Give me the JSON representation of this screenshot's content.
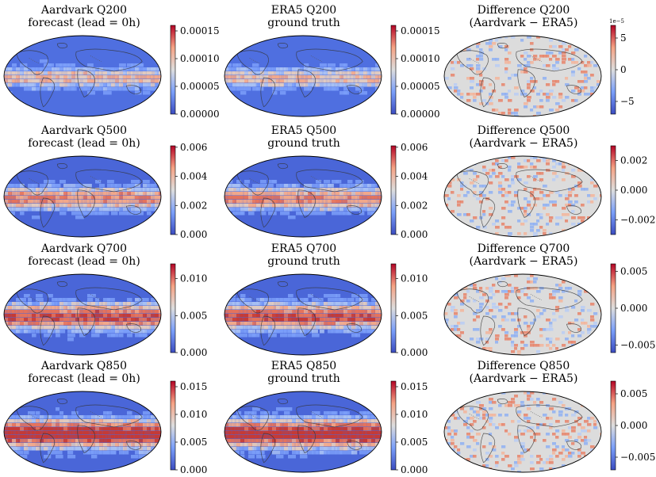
{
  "chart_data": {
    "type": "heatmap",
    "rows": [
      {
        "variable": "Q200",
        "panels": [
          {
            "kind": "forecast",
            "title": "Aardvark Q200",
            "subtitle": "forecast (lead = 0h)",
            "colormap": "coolwarm",
            "vmin": 0.0,
            "vmax": 0.00016,
            "ticks": [
              0.0,
              5e-05,
              0.0001,
              0.00015
            ],
            "tick_labels": [
              "0.00000",
              "0.00005",
              "0.00010",
              "0.00015"
            ],
            "offset_label": ""
          },
          {
            "kind": "truth",
            "title": "ERA5 Q200",
            "subtitle": "ground truth",
            "colormap": "coolwarm",
            "vmin": 0.0,
            "vmax": 0.00016,
            "ticks": [
              0.0,
              5e-05,
              0.0001,
              0.00015
            ],
            "tick_labels": [
              "0.00000",
              "0.00005",
              "0.00010",
              "0.00015"
            ],
            "offset_label": ""
          },
          {
            "kind": "diff",
            "title": "Difference Q200",
            "subtitle": "(Aardvark − ERA5)",
            "colormap": "coolwarm",
            "vmin": -7,
            "vmax": 7,
            "ticks": [
              -5,
              0,
              5
            ],
            "tick_labels": [
              "−5",
              "0",
              "5"
            ],
            "offset_label": "1e−5"
          }
        ]
      },
      {
        "variable": "Q500",
        "panels": [
          {
            "kind": "forecast",
            "title": "Aardvark Q500",
            "subtitle": "forecast (lead = 0h)",
            "colormap": "coolwarm",
            "vmin": 0.0,
            "vmax": 0.0061,
            "ticks": [
              0.0,
              0.002,
              0.004,
              0.006
            ],
            "tick_labels": [
              "0.000",
              "0.002",
              "0.004",
              "0.006"
            ],
            "offset_label": ""
          },
          {
            "kind": "truth",
            "title": "ERA5 Q500",
            "subtitle": "ground truth",
            "colormap": "coolwarm",
            "vmin": 0.0,
            "vmax": 0.0061,
            "ticks": [
              0.0,
              0.002,
              0.004,
              0.006
            ],
            "tick_labels": [
              "0.000",
              "0.002",
              "0.004",
              "0.006"
            ],
            "offset_label": ""
          },
          {
            "kind": "diff",
            "title": "Difference Q500",
            "subtitle": "(Aardvark − ERA5)",
            "colormap": "coolwarm",
            "vmin": -0.003,
            "vmax": 0.003,
            "ticks": [
              -0.002,
              0.0,
              0.002
            ],
            "tick_labels": [
              "−0.002",
              "0.000",
              "0.002"
            ],
            "offset_label": ""
          }
        ]
      },
      {
        "variable": "Q700",
        "panels": [
          {
            "kind": "forecast",
            "title": "Aardvark Q700",
            "subtitle": "forecast (lead = 0h)",
            "colormap": "coolwarm",
            "vmin": 0.0,
            "vmax": 0.012,
            "ticks": [
              0.0,
              0.005,
              0.01
            ],
            "tick_labels": [
              "0.000",
              "0.005",
              "0.010"
            ],
            "offset_label": ""
          },
          {
            "kind": "truth",
            "title": "ERA5 Q700",
            "subtitle": "ground truth",
            "colormap": "coolwarm",
            "vmin": 0.0,
            "vmax": 0.012,
            "ticks": [
              0.0,
              0.005,
              0.01
            ],
            "tick_labels": [
              "0.000",
              "0.005",
              "0.010"
            ],
            "offset_label": ""
          },
          {
            "kind": "diff",
            "title": "Difference Q700",
            "subtitle": "(Aardvark − ERA5)",
            "colormap": "coolwarm",
            "vmin": -0.006,
            "vmax": 0.006,
            "ticks": [
              -0.005,
              0.0,
              0.005
            ],
            "tick_labels": [
              "−0.005",
              "0.000",
              "0.005"
            ],
            "offset_label": ""
          }
        ]
      },
      {
        "variable": "Q850",
        "panels": [
          {
            "kind": "forecast",
            "title": "Aardvark Q850",
            "subtitle": "forecast (lead = 0h)",
            "colormap": "coolwarm",
            "vmin": 0.0,
            "vmax": 0.016,
            "ticks": [
              0.0,
              0.005,
              0.01,
              0.015
            ],
            "tick_labels": [
              "0.000",
              "0.005",
              "0.010",
              "0.015"
            ],
            "offset_label": ""
          },
          {
            "kind": "truth",
            "title": "ERA5 Q850",
            "subtitle": "ground truth",
            "colormap": "coolwarm",
            "vmin": 0.0,
            "vmax": 0.016,
            "ticks": [
              0.0,
              0.005,
              0.01,
              0.015
            ],
            "tick_labels": [
              "0.000",
              "0.005",
              "0.010",
              "0.015"
            ],
            "offset_label": ""
          },
          {
            "kind": "diff",
            "title": "Difference Q850",
            "subtitle": "(Aardvark − ERA5)",
            "colormap": "coolwarm",
            "vmin": -0.007,
            "vmax": 0.007,
            "ticks": [
              -0.005,
              0.0,
              0.005
            ],
            "tick_labels": [
              "−0.005",
              "0.000",
              "0.005"
            ],
            "offset_label": ""
          }
        ]
      }
    ]
  },
  "colors": {
    "cmap_low": "#3b4cc0",
    "cmap_mid": "#dddddd",
    "cmap_high": "#b40426",
    "map_outline": "#000000",
    "coastline": "#333333",
    "borders": "#555555"
  }
}
